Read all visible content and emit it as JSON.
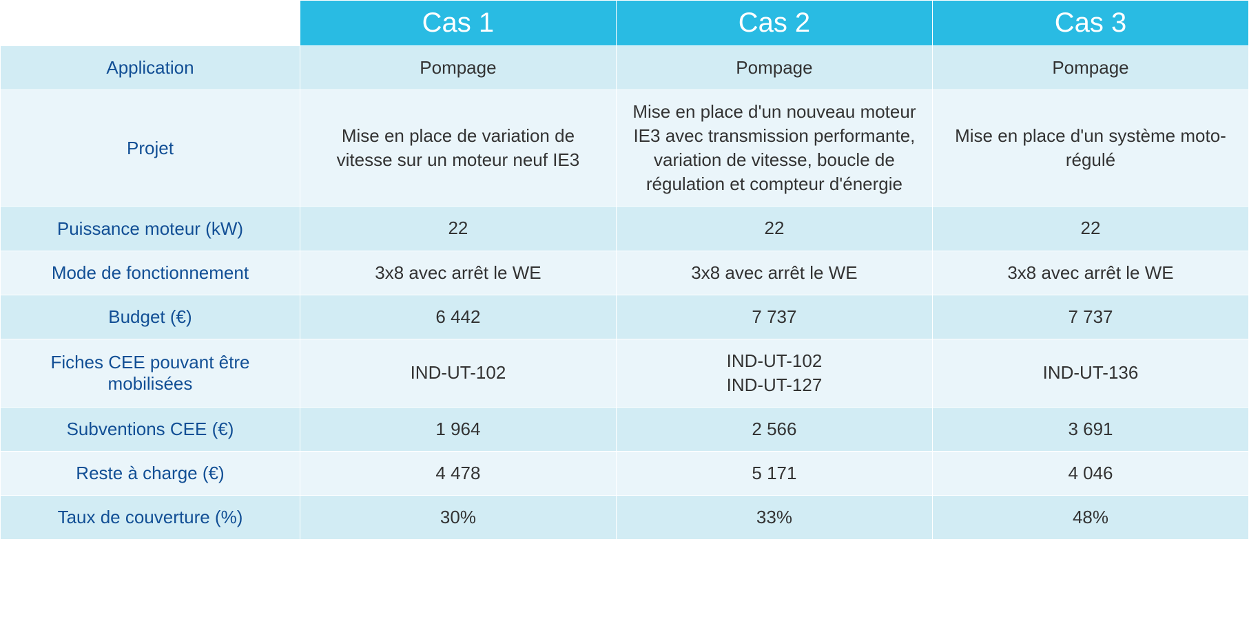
{
  "colors": {
    "header_bg": "#29bbe3",
    "band_a": "#d2ecf4",
    "band_b": "#eaf5fa",
    "label_fg": "#124f95",
    "value_fg": "#333333"
  },
  "columns": [
    "Cas 1",
    "Cas 2",
    "Cas 3"
  ],
  "rows": [
    {
      "label": "Application",
      "band": "a",
      "cells": [
        "Pompage",
        "Pompage",
        "Pompage"
      ]
    },
    {
      "label": "Projet",
      "band": "b",
      "cells": [
        "Mise en place de variation de vitesse sur un moteur neuf IE3",
        "Mise en place d'un nouveau moteur IE3 avec transmission performante, variation de vitesse, boucle de régulation et compteur d'énergie",
        "Mise en place d'un système moto-régulé"
      ]
    },
    {
      "label": "Puissance moteur (kW)",
      "band": "a",
      "cells": [
        "22",
        "22",
        "22"
      ]
    },
    {
      "label": "Mode de fonctionnement",
      "band": "b",
      "cells": [
        "3x8 avec arrêt le WE",
        "3x8 avec arrêt le WE",
        "3x8 avec arrêt le WE"
      ]
    },
    {
      "label": "Budget (€)",
      "band": "a",
      "cells": [
        "6 442",
        "7 737",
        "7 737"
      ]
    },
    {
      "label": "Fiches CEE pouvant être mobilisées",
      "band": "b",
      "cells": [
        "IND-UT-102",
        "IND-UT-102\nIND-UT-127",
        "IND-UT-136"
      ]
    },
    {
      "label": "Subventions CEE (€)",
      "band": "a",
      "cells": [
        "1 964",
        "2 566",
        "3 691"
      ]
    },
    {
      "label": "Reste à charge (€)",
      "band": "b",
      "cells": [
        "4 478",
        "5 171",
        "4 046"
      ]
    },
    {
      "label": "Taux de couverture (%)",
      "band": "a",
      "cells": [
        "30%",
        "33%",
        "48%"
      ]
    }
  ]
}
